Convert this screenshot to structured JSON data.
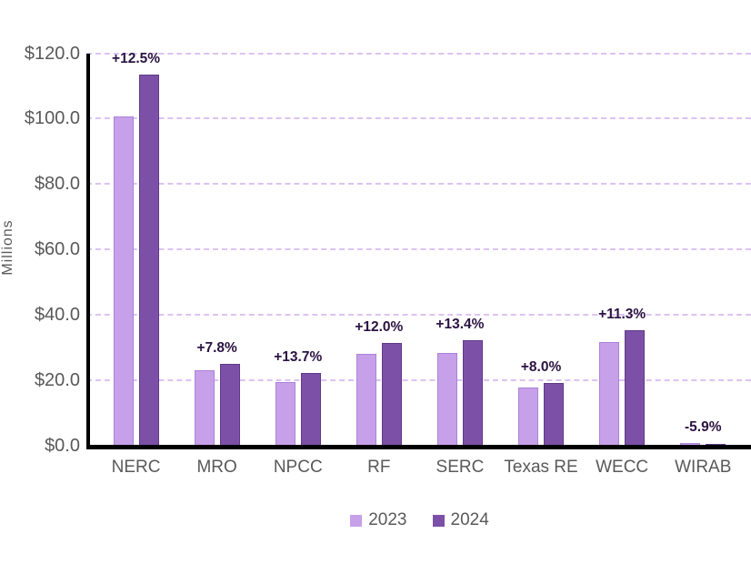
{
  "chart_data": {
    "type": "bar",
    "title": "",
    "xlabel": "",
    "ylabel": "Millions",
    "categories": [
      "NERC",
      "MRO",
      "NPCC",
      "RF",
      "SERC",
      "Texas RE",
      "WECC",
      "WIRAB"
    ],
    "series": [
      {
        "name": "2023",
        "color": "#c6a1e9",
        "border_color": "#ab82d9",
        "values": [
          100.8,
          23.1,
          19.6,
          28.0,
          28.4,
          17.8,
          31.7,
          0.7
        ]
      },
      {
        "name": "2024",
        "color": "#7d50a8",
        "border_color": "#5f3a87",
        "values": [
          113.4,
          24.9,
          22.3,
          31.4,
          32.2,
          19.2,
          35.3,
          0.66
        ]
      }
    ],
    "bar_group_labels": [
      "+12.5%",
      "+7.8%",
      "+13.7%",
      "+12.0%",
      "+13.4%",
      "+8.0%",
      "+11.3%",
      "-5.9%"
    ],
    "ylim": [
      0,
      120
    ],
    "y_tick_step": 20,
    "y_tick_labels": [
      "$0.0",
      "$20.0",
      "$40.0",
      "$60.0",
      "$80.0",
      "$100.0",
      "$120.0"
    ],
    "grid": "horizontal-dashed",
    "legend_position": "bottom-center",
    "colors": {
      "gridline": "#dcc3f2",
      "axis": "#000000",
      "tick_text": "#595959",
      "group_label_text": "#2b1342",
      "background": "#ffffff"
    }
  }
}
